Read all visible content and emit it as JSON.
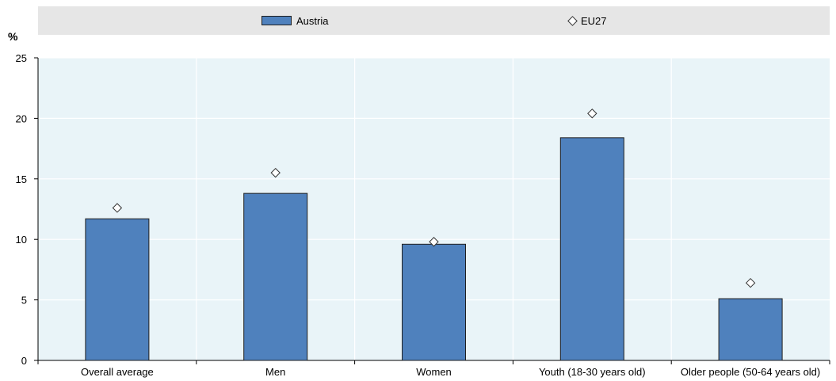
{
  "legend": {
    "austria_label": "Austria",
    "eu27_label": "EU27"
  },
  "y_unit": "%",
  "chart_data": {
    "type": "bar",
    "categories": [
      "Overall average",
      "Men",
      "Women",
      "Youth (18-30 years old)",
      "Older people (50-64 years old)"
    ],
    "series": [
      {
        "name": "Austria",
        "type": "bar",
        "values": [
          11.7,
          13.8,
          9.6,
          18.4,
          5.1
        ],
        "color": "#4f81bd"
      },
      {
        "name": "EU27",
        "type": "marker",
        "marker": "diamond",
        "values": [
          12.6,
          15.5,
          9.8,
          20.4,
          6.4
        ],
        "color": "#ffffff"
      }
    ],
    "ylim": [
      0,
      25
    ],
    "yticks": [
      0,
      5,
      10,
      15,
      20,
      25
    ],
    "ylabel": "%",
    "xlabel": "",
    "grid": true,
    "legend_position": "top",
    "plot_background": "#e9f4f8"
  }
}
